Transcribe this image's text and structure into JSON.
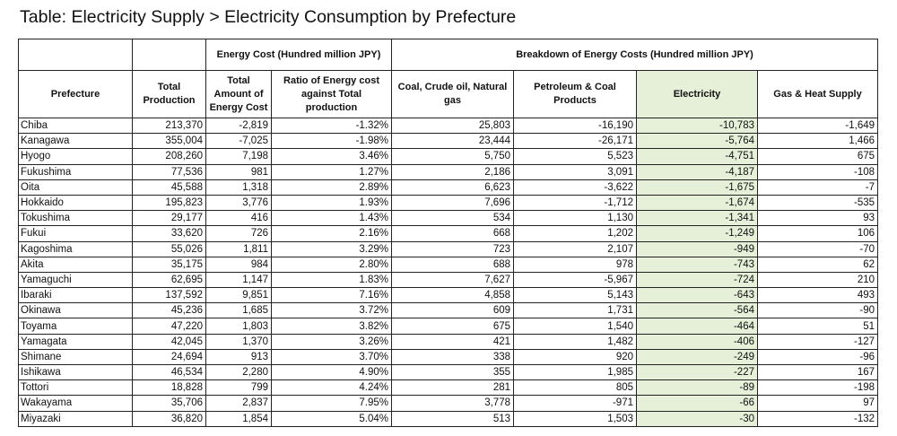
{
  "title": "Table: Electricity Supply > Electricity Consumption by Prefecture",
  "groups": {
    "energy_cost": "Energy Cost (Hundred million JPY)",
    "breakdown": "Breakdown of Energy Costs (Hundred million JPY)"
  },
  "columns": {
    "prefecture": "Prefecture",
    "total_production": "Total Production",
    "total_energy_cost": "Total Amount of Energy Cost",
    "ratio": "Ratio of Energy cost against Total production",
    "coal": "Coal,  Crude oil, Natural gas",
    "petroleum": "Petroleum & Coal Products",
    "electricity": "Electricity",
    "gas_heat": "Gas & Heat Supply"
  },
  "highlight_color": "#e6f0d9",
  "rows": [
    [
      "Chiba",
      "213,370",
      "-2,819",
      "-1.32%",
      "25,803",
      "-16,190",
      "-10,783",
      "-1,649"
    ],
    [
      "Kanagawa",
      "355,004",
      "-7,025",
      "-1.98%",
      "23,444",
      "-26,171",
      "-5,764",
      "1,466"
    ],
    [
      "Hyogo",
      "208,260",
      "7,198",
      "3.46%",
      "5,750",
      "5,523",
      "-4,751",
      "675"
    ],
    [
      "Fukushima",
      "77,536",
      "981",
      "1.27%",
      "2,186",
      "3,091",
      "-4,187",
      "-108"
    ],
    [
      "Oita",
      "45,588",
      "1,318",
      "2.89%",
      "6,623",
      "-3,622",
      "-1,675",
      "-7"
    ],
    [
      "Hokkaido",
      "195,823",
      "3,776",
      "1.93%",
      "7,696",
      "-1,712",
      "-1,674",
      "-535"
    ],
    [
      "Tokushima",
      "29,177",
      "416",
      "1.43%",
      "534",
      "1,130",
      "-1,341",
      "93"
    ],
    [
      "Fukui",
      "33,620",
      "726",
      "2.16%",
      "668",
      "1,202",
      "-1,249",
      "106"
    ],
    [
      "Kagoshima",
      "55,026",
      "1,811",
      "3.29%",
      "723",
      "2,107",
      "-949",
      "-70"
    ],
    [
      "Akita",
      "35,175",
      "984",
      "2.80%",
      "688",
      "978",
      "-743",
      "62"
    ],
    [
      "Yamaguchi",
      "62,695",
      "1,147",
      "1.83%",
      "7,627",
      "-5,967",
      "-724",
      "210"
    ],
    [
      "Ibaraki",
      "137,592",
      "9,851",
      "7.16%",
      "4,858",
      "5,143",
      "-643",
      "493"
    ],
    [
      "Okinawa",
      "45,236",
      "1,685",
      "3.72%",
      "609",
      "1,731",
      "-564",
      "-90"
    ],
    [
      "Toyama",
      "47,220",
      "1,803",
      "3.82%",
      "675",
      "1,540",
      "-464",
      "51"
    ],
    [
      "Yamagata",
      "42,045",
      "1,370",
      "3.26%",
      "421",
      "1,482",
      "-406",
      "-127"
    ],
    [
      "Shimane",
      "24,694",
      "913",
      "3.70%",
      "338",
      "920",
      "-249",
      "-96"
    ],
    [
      "Ishikawa",
      "46,534",
      "2,280",
      "4.90%",
      "355",
      "1,985",
      "-227",
      "167"
    ],
    [
      "Tottori",
      "18,828",
      "799",
      "4.24%",
      "281",
      "805",
      "-89",
      "-198"
    ],
    [
      "Wakayama",
      "35,706",
      "2,837",
      "7.95%",
      "3,778",
      "-971",
      "-66",
      "97"
    ],
    [
      "Miyazaki",
      "36,820",
      "1,854",
      "5.04%",
      "513",
      "1,503",
      "-30",
      "-132"
    ]
  ]
}
